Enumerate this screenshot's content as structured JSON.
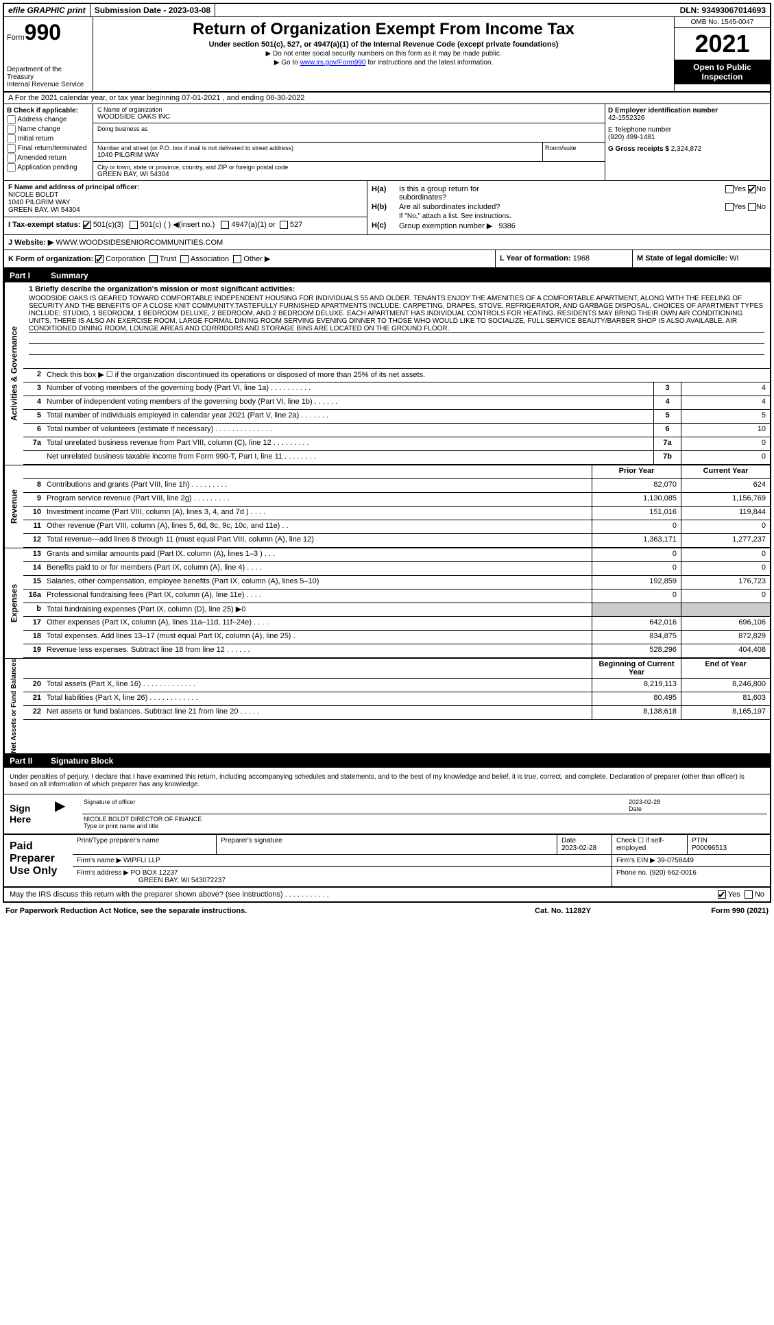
{
  "top": {
    "efile": "efile GRAPHIC print",
    "submission": "Submission Date - 2023-03-08",
    "dln": "DLN: 93493067014693"
  },
  "header": {
    "form_prefix": "Form",
    "form_num": "990",
    "dept": "Department of the Treasury",
    "irs": "Internal Revenue Service",
    "title": "Return of Organization Exempt From Income Tax",
    "subtitle": "Under section 501(c), 527, or 4947(a)(1) of the Internal Revenue Code (except private foundations)",
    "note1": "▶ Do not enter social security numbers on this form as it may be made public.",
    "note2_pre": "▶ Go to ",
    "note2_link": "www.irs.gov/Form990",
    "note2_post": " for instructions and the latest information.",
    "omb": "OMB No. 1545-0047",
    "year": "2021",
    "open1": "Open to Public",
    "open2": "Inspection"
  },
  "row_a": "A For the 2021 calendar year, or tax year beginning 07-01-2021   , and ending 06-30-2022",
  "b": {
    "hdr": "B Check if applicable:",
    "items": [
      "Address change",
      "Name change",
      "Initial return",
      "Final return/terminated",
      "Amended return",
      "Application pending"
    ]
  },
  "c": {
    "name_lbl": "C Name of organization",
    "name": "WOODSIDE OAKS INC",
    "dba_lbl": "Doing business as",
    "addr_lbl": "Number and street (or P.O. box if mail is not delivered to street address)",
    "addr": "1040 PILGRIM WAY",
    "room_lbl": "Room/suite",
    "city_lbl": "City or town, state or province, country, and ZIP or foreign postal code",
    "city": "GREEN BAY, WI  54304"
  },
  "d": {
    "ein_lbl": "D Employer identification number",
    "ein": "42-1552326",
    "tel_lbl": "E Telephone number",
    "tel": "(920) 499-1481",
    "gross_lbl": "G Gross receipts $",
    "gross": "2,324,872"
  },
  "f": {
    "lbl": "F  Name and address of principal officer:",
    "name": "NICOLE BOLDT",
    "addr1": "1040 PILGRIM WAY",
    "addr2": "GREEN BAY, WI  54304"
  },
  "i": {
    "lbl": "I    Tax-exempt status:",
    "o1": "501(c)(3)",
    "o2": "501(c) (  ) ◀(insert no.)",
    "o3": "4947(a)(1) or",
    "o4": "527"
  },
  "h": {
    "a_lbl": "H(a)",
    "a_txt": "Is this a group return for",
    "a_txt2": "subordinates?",
    "b_lbl": "H(b)",
    "b_txt": "Are all subordinates included?",
    "b_note": "If \"No,\" attach a list. See instructions.",
    "c_lbl": "H(c)",
    "c_txt": "Group exemption number ▶",
    "c_val": "9386",
    "yes": "Yes",
    "no": "No"
  },
  "j": {
    "lbl": "J   Website: ▶",
    "val": "WWW.WOODSIDESENIORCOMMUNITIES.COM"
  },
  "k": {
    "lbl": "K Form of organization:",
    "opts": [
      "Corporation",
      "Trust",
      "Association",
      "Other ▶"
    ]
  },
  "l": {
    "lbl": "L Year of formation:",
    "val": "1968"
  },
  "m": {
    "lbl": "M State of legal domicile:",
    "val": "WI"
  },
  "part1": {
    "num": "Part I",
    "title": "Summary"
  },
  "part2": {
    "num": "Part II",
    "title": "Signature Block"
  },
  "tabs": {
    "t1": "Activities & Governance",
    "t2": "Revenue",
    "t3": "Expenses",
    "t4": "Net Assets or Fund Balances"
  },
  "mission": {
    "lbl": "1   Briefly describe the organization's mission or most significant activities:",
    "txt": "WOODSIDE OAKS IS GEARED TOWARD COMFORTABLE INDEPENDENT HOUSING FOR INDIVIDUALS 55 AND OLDER. TENANTS ENJOY THE AMENITIES OF A COMFORTABLE APARTMENT, ALONG WITH THE FEELING OF SECURITY AND THE BENEFITS OF A CLOSE KNIT COMMUNITY.TASTEFULLY FURNISHED APARTMENTS INCLUDE: CARPETING, DRAPES, STOVE, REFRIGERATOR, AND GARBAGE DISPOSAL. CHOICES OF APARTMENT TYPES INCLUDE: STUDIO, 1 BEDROOM, 1 BEDROOM DELUXE, 2 BEDROOM, AND 2 BEDROOM DELUXE. EACH APARTMENT HAS INDIVIDUAL CONTROLS FOR HEATING. RESIDENTS MAY BRING THEIR OWN AIR CONDITIONING UNITS. THERE IS ALSO AN EXERCISE ROOM, LARGE FORMAL DINING ROOM SERVING EVENING DINNER TO THOSE WHO WOULD LIKE TO SOCIALIZE, FULL SERVICE BEAUTY/BARBER SHOP IS ALSO AVAILABLE, AIR CONDITIONED DINING ROOM, LOUNGE AREAS AND CORRIDORS AND STORAGE BINS ARE LOCATED ON THE GROUND FLOOR."
  },
  "gov_rows": [
    {
      "n": "2",
      "t": "Check this box ▶ ☐ if the organization discontinued its operations or disposed of more than 25% of its net assets.",
      "box": "",
      "v": ""
    },
    {
      "n": "3",
      "t": "Number of voting members of the governing body (Part VI, line 1a)  .   .   .   .   .   .   .   .   .   .",
      "box": "3",
      "v": "4"
    },
    {
      "n": "4",
      "t": "Number of independent voting members of the governing body (Part VI, line 1b)   .   .   .   .   .   .",
      "box": "4",
      "v": "4"
    },
    {
      "n": "5",
      "t": "Total number of individuals employed in calendar year 2021 (Part V, line 2a)   .   .   .   .   .   .   .",
      "box": "5",
      "v": "5"
    },
    {
      "n": "6",
      "t": "Total number of volunteers (estimate if necessary)   .   .   .   .   .   .   .   .   .   .   .   .   .   .",
      "box": "6",
      "v": "10"
    },
    {
      "n": "7a",
      "t": "Total unrelated business revenue from Part VIII, column (C), line 12   .   .   .   .   .   .   .   .   .",
      "box": "7a",
      "v": "0"
    },
    {
      "n": "",
      "t": "Net unrelated business taxable income from Form 990-T, Part I, line 11   .   .   .   .   .   .   .   .",
      "box": "7b",
      "v": "0"
    }
  ],
  "col_hdrs": {
    "prior": "Prior Year",
    "current": "Current Year",
    "begin": "Beginning of Current Year",
    "end": "End of Year"
  },
  "rev_rows": [
    {
      "n": "8",
      "t": "Contributions and grants (Part VIII, line 1h)   .   .   .   .   .   .   .   .   .",
      "p": "82,070",
      "c": "624"
    },
    {
      "n": "9",
      "t": "Program service revenue (Part VIII, line 2g)   .   .   .   .   .   .   .   .   .",
      "p": "1,130,085",
      "c": "1,156,769"
    },
    {
      "n": "10",
      "t": "Investment income (Part VIII, column (A), lines 3, 4, and 7d )   .   .   .   .",
      "p": "151,016",
      "c": "119,844"
    },
    {
      "n": "11",
      "t": "Other revenue (Part VIII, column (A), lines 5, 6d, 8c, 9c, 10c, and 11e)   .   .",
      "p": "0",
      "c": "0"
    },
    {
      "n": "12",
      "t": "Total revenue—add lines 8 through 11 (must equal Part VIII, column (A), line 12)",
      "p": "1,363,171",
      "c": "1,277,237"
    }
  ],
  "exp_rows": [
    {
      "n": "13",
      "t": "Grants and similar amounts paid (Part IX, column (A), lines 1–3 )   .   .   .",
      "p": "0",
      "c": "0"
    },
    {
      "n": "14",
      "t": "Benefits paid to or for members (Part IX, column (A), line 4)   .   .   .   .",
      "p": "0",
      "c": "0"
    },
    {
      "n": "15",
      "t": "Salaries, other compensation, employee benefits (Part IX, column (A), lines 5–10)",
      "p": "192,859",
      "c": "176,723"
    },
    {
      "n": "16a",
      "t": "Professional fundraising fees (Part IX, column (A), line 11e)   .   .   .   .",
      "p": "0",
      "c": "0"
    },
    {
      "n": "b",
      "t": "Total fundraising expenses (Part IX, column (D), line 25) ▶0",
      "p": "grey",
      "c": "grey"
    },
    {
      "n": "17",
      "t": "Other expenses (Part IX, column (A), lines 11a–11d, 11f–24e)   .   .   .   .",
      "p": "642,016",
      "c": "696,106"
    },
    {
      "n": "18",
      "t": "Total expenses. Add lines 13–17 (must equal Part IX, column (A), line 25)   .",
      "p": "834,875",
      "c": "872,829"
    },
    {
      "n": "19",
      "t": "Revenue less expenses. Subtract line 18 from line 12   .   .   .   .   .   .",
      "p": "528,296",
      "c": "404,408"
    }
  ],
  "net_rows": [
    {
      "n": "20",
      "t": "Total assets (Part X, line 16)   .   .   .   .   .   .   .   .   .   .   .   .   .",
      "p": "8,219,113",
      "c": "8,246,800"
    },
    {
      "n": "21",
      "t": "Total liabilities (Part X, line 26)   .   .   .   .   .   .   .   .   .   .   .   .",
      "p": "80,495",
      "c": "81,603"
    },
    {
      "n": "22",
      "t": "Net assets or fund balances. Subtract line 21 from line 20   .   .   .   .   .",
      "p": "8,138,618",
      "c": "8,165,197"
    }
  ],
  "sig": {
    "perjury": "Under penalties of perjury, I declare that I have examined this return, including accompanying schedules and statements, and to the best of my knowledge and belief, it is true, correct, and complete. Declaration of preparer (other than officer) is based on all information of which preparer has any knowledge.",
    "sign_here": "Sign Here",
    "sig_lbl": "Signature of officer",
    "date_lbl": "Date",
    "date": "2023-02-28",
    "name": "NICOLE BOLDT  DIRECTOR OF FINANCE",
    "name_lbl": "Type or print name and title"
  },
  "prep": {
    "hdr": "Paid Preparer Use Only",
    "r1": {
      "c1": "Print/Type preparer's name",
      "c2": "Preparer's signature",
      "c3": "Date",
      "c3v": "2023-02-28",
      "c4": "Check ☐ if self-employed",
      "c5": "PTIN",
      "c5v": "P00096513"
    },
    "r2": {
      "lbl": "Firm's name     ▶",
      "val": "WIPFLI LLP",
      "ein_lbl": "Firm's EIN ▶",
      "ein": "39-0758449"
    },
    "r3": {
      "lbl": "Firm's address ▶",
      "val1": "PO BOX 12237",
      "val2": "GREEN BAY, WI  543072237",
      "ph_lbl": "Phone no.",
      "ph": "(920) 662-0016"
    }
  },
  "discuss": {
    "txt": "May the IRS discuss this return with the preparer shown above? (see instructions)   .   .   .   .   .   .   .   .   .   .   .",
    "yes": "Yes",
    "no": "No"
  },
  "bottom": {
    "l": "For Paperwork Reduction Act Notice, see the separate instructions.",
    "c": "Cat. No. 11282Y",
    "r": "Form 990 (2021)"
  }
}
